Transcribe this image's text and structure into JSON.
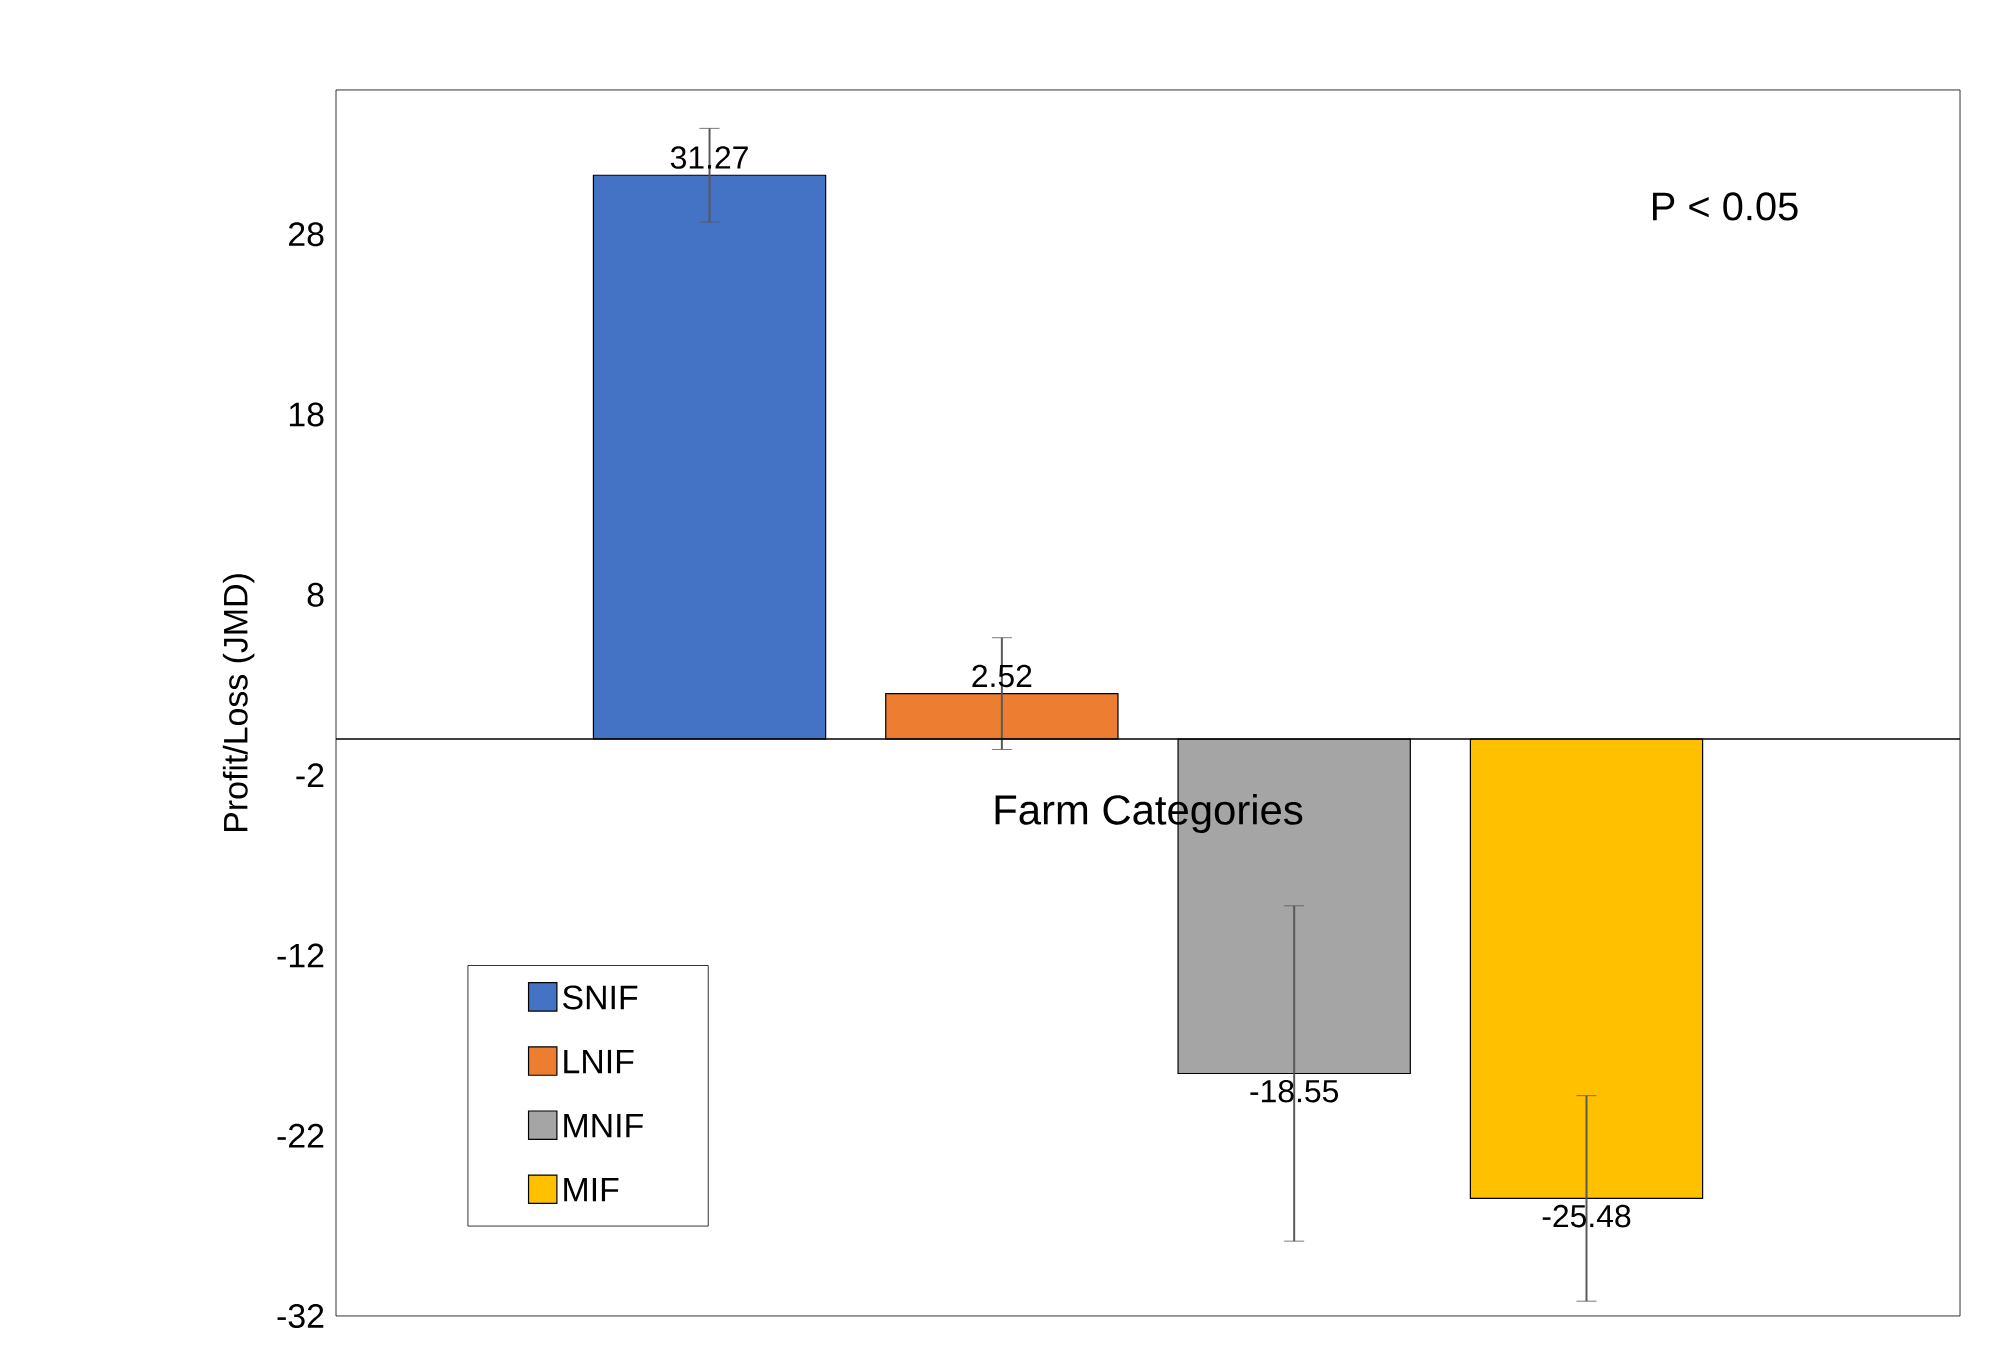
{
  "chart_data": {
    "type": "bar",
    "xlabel": "Farm Categories",
    "ylabel": "Profit/Loss (JMD)",
    "categories": [
      null
    ],
    "series": [
      {
        "name": "SNIF",
        "color": "#4472c4",
        "values": [
          31.27
        ],
        "errors": [
          2.6
        ]
      },
      {
        "name": "LNIF",
        "color": "#ed7d31",
        "values": [
          2.52
        ],
        "errors": [
          3.1
        ]
      },
      {
        "name": "MNIF",
        "color": "#a5a5a5",
        "values": [
          -18.55
        ],
        "errors": [
          9.3
        ]
      },
      {
        "name": "MIF",
        "color": "#ffc000",
        "values": [
          -25.48
        ],
        "errors": [
          5.7
        ]
      }
    ],
    "ylim": [
      -32,
      36
    ],
    "yticks": [
      -32,
      -22,
      -12,
      -2,
      8,
      18,
      28
    ],
    "data_labels": true,
    "legend": "bottom left",
    "grid": false,
    "annotations": [
      "P < 0.05"
    ]
  }
}
